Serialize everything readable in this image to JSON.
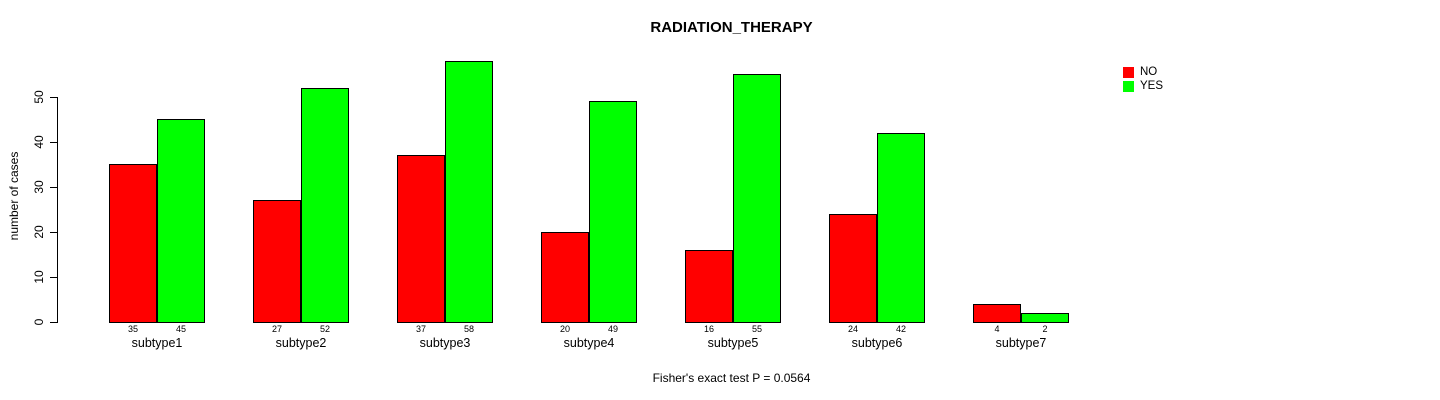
{
  "title": "RADIATION_THERAPY",
  "subtitle": "Fisher's exact test P = 0.0564",
  "colors": {
    "no": "#FF0000",
    "yes": "#00FF00",
    "axis": "#000000",
    "background": "#FFFFFF"
  },
  "chart_data": {
    "type": "bar",
    "title": "RADIATION_THERAPY",
    "xlabel": "",
    "ylabel": "number of cases",
    "annotation": "Fisher's exact test P = 0.0564",
    "categories": [
      "subtype1",
      "subtype2",
      "subtype3",
      "subtype4",
      "subtype5",
      "subtype6",
      "subtype7"
    ],
    "series": [
      {
        "name": "NO",
        "color": "#FF0000",
        "values": [
          35,
          27,
          37,
          20,
          16,
          24,
          4
        ]
      },
      {
        "name": "YES",
        "color": "#00FF00",
        "values": [
          45,
          52,
          58,
          49,
          55,
          42,
          2
        ]
      }
    ],
    "value_labels_shown": true,
    "yticks": [
      0,
      10,
      20,
      30,
      40,
      50
    ],
    "ylim": [
      0,
      58
    ],
    "grid": false,
    "legend_position": "top-right",
    "legend": [
      {
        "label": "NO",
        "color": "#FF0000"
      },
      {
        "label": "YES",
        "color": "#00FF00"
      }
    ]
  }
}
